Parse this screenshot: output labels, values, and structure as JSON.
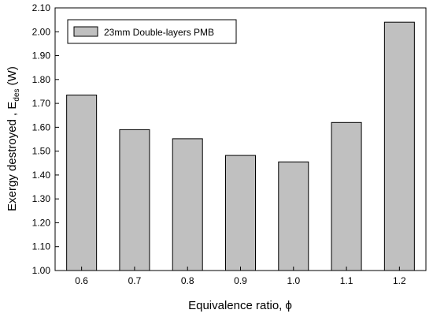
{
  "chart_data": {
    "type": "bar",
    "categories": [
      "0.6",
      "0.7",
      "0.8",
      "0.9",
      "1.0",
      "1.1",
      "1.2"
    ],
    "series": [
      {
        "name": "23mm Double-layers PMB",
        "values": [
          1.735,
          1.59,
          1.552,
          1.482,
          1.455,
          1.62,
          2.04
        ]
      }
    ],
    "xlabel": "Equivalence ratio, ϕ",
    "ylabel_main": "Exergy destroyed , E",
    "ylabel_sub": "des",
    "ylabel_unit": " (W)",
    "ylim": [
      1.0,
      2.1
    ],
    "yticks": [
      "1.00",
      "1.10",
      "1.20",
      "1.30",
      "1.40",
      "1.50",
      "1.60",
      "1.70",
      "1.80",
      "1.90",
      "2.00",
      "2.10"
    ],
    "legend_position": "top-left",
    "grid": false,
    "colors": {
      "bar_fill": "#c0c0c0",
      "bar_stroke": "#000000"
    }
  }
}
